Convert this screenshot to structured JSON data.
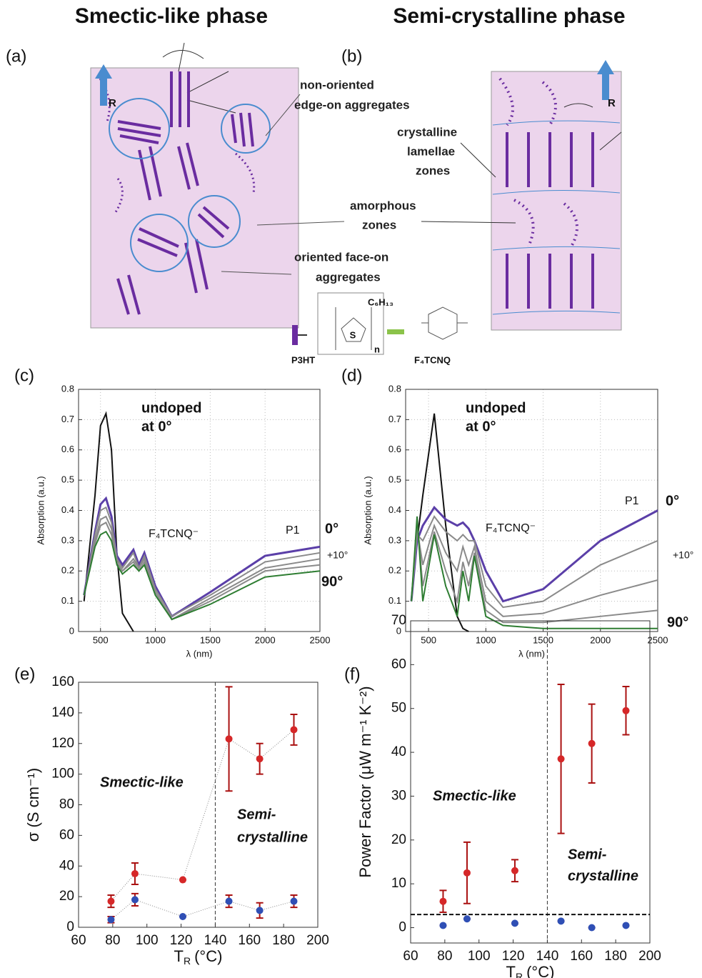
{
  "headings": [
    "Smectic-like phase",
    "Semi-crystalline phase"
  ],
  "diagrams": {
    "a": {
      "label": "(a)",
      "arrow": "R",
      "callouts": [
        [
          "non-oriented",
          "edge-on aggregates"
        ],
        [
          "amorphous",
          "zones"
        ],
        [
          "oriented face-on",
          "aggregates"
        ]
      ]
    },
    "b": {
      "label": "(b)",
      "arrow": "R",
      "callouts": [
        [
          "crystalline",
          "lamellae",
          "zones"
        ]
      ]
    },
    "legend": {
      "polymer": "P3HT",
      "dopant": "F₄TCNQ",
      "side_chain": "C₆H₁₃",
      "ring_atom": "S",
      "repeat": "n"
    }
  },
  "chart_data": [
    {
      "type": "line",
      "label": "(c)",
      "x_label": "λ (nm)",
      "y_label": "Absorption (a.u.)",
      "xlim": [
        300,
        2500
      ],
      "ylim": [
        0,
        0.8
      ],
      "xticks": [
        500,
        1000,
        1500,
        2000,
        2500
      ],
      "yticks": [
        0,
        0.1,
        0.2,
        0.3,
        0.4,
        0.5,
        0.6,
        0.7,
        0.8
      ],
      "grid": true,
      "x": [
        350,
        450,
        500,
        550,
        600,
        650,
        700,
        800,
        850,
        900,
        1000,
        1150,
        1500,
        2000,
        2500
      ],
      "series": [
        {
          "color": "#111111",
          "values": [
            0.1,
            0.45,
            0.68,
            0.72,
            0.6,
            0.25,
            0.06,
            0,
            null,
            null,
            null,
            null,
            null,
            null,
            null
          ]
        },
        {
          "color": "#5b3fa8",
          "values": [
            0.12,
            0.33,
            0.42,
            0.44,
            0.38,
            0.25,
            0.22,
            0.27,
            0.22,
            0.26,
            0.15,
            0.05,
            0.13,
            0.25,
            0.28
          ]
        },
        {
          "color": "#8a8a8a",
          "values": [
            0.12,
            0.32,
            0.4,
            0.41,
            0.36,
            0.24,
            0.21,
            0.26,
            0.21,
            0.25,
            0.14,
            0.05,
            0.12,
            0.23,
            0.26
          ]
        },
        {
          "color": "#8a8a8a",
          "values": [
            0.12,
            0.3,
            0.37,
            0.38,
            0.34,
            0.23,
            0.2,
            0.24,
            0.21,
            0.24,
            0.13,
            0.04,
            0.11,
            0.21,
            0.24
          ]
        },
        {
          "color": "#8a8a8a",
          "values": [
            0.12,
            0.29,
            0.35,
            0.36,
            0.32,
            0.23,
            0.2,
            0.23,
            0.2,
            0.23,
            0.13,
            0.04,
            0.1,
            0.2,
            0.22
          ]
        },
        {
          "color": "#2e7d32",
          "values": [
            0.12,
            0.28,
            0.32,
            0.33,
            0.3,
            0.22,
            0.19,
            0.22,
            0.2,
            0.22,
            0.12,
            0.04,
            0.09,
            0.18,
            0.2
          ]
        }
      ],
      "annotations": [
        "undoped",
        "at 0°",
        "F₄TCNQ⁻",
        "P1",
        "0°",
        "+10°",
        "90°"
      ]
    },
    {
      "type": "line",
      "label": "(d)",
      "x_label": "λ (nm)",
      "y_label": "Absorption (a.u.)",
      "xlim": [
        300,
        2500
      ],
      "ylim": [
        0,
        0.8
      ],
      "xticks": [
        500,
        1000,
        1500,
        2000,
        2500
      ],
      "yticks": [
        0,
        0.1,
        0.2,
        0.3,
        0.4,
        0.5,
        0.6,
        0.7,
        0.8
      ],
      "grid": true,
      "x": [
        350,
        400,
        450,
        550,
        650,
        750,
        800,
        850,
        900,
        1000,
        1150,
        1500,
        2000,
        2500
      ],
      "series": [
        {
          "color": "#111111",
          "values": [
            0.1,
            0.3,
            0.45,
            0.72,
            0.35,
            0.05,
            0.01,
            0,
            null,
            null,
            null,
            null,
            null,
            null
          ]
        },
        {
          "color": "#5b3fa8",
          "values": [
            0.1,
            0.3,
            0.35,
            0.41,
            0.37,
            0.35,
            0.36,
            0.34,
            0.3,
            0.2,
            0.1,
            0.14,
            0.3,
            0.4
          ]
        },
        {
          "color": "#8a8a8a",
          "values": [
            0.1,
            0.32,
            0.3,
            0.38,
            0.33,
            0.3,
            0.32,
            0.3,
            0.3,
            0.15,
            0.08,
            0.1,
            0.22,
            0.3
          ]
        },
        {
          "color": "#8a8a8a",
          "values": [
            0.1,
            0.34,
            0.22,
            0.35,
            0.26,
            0.2,
            0.28,
            0.22,
            0.28,
            0.1,
            0.05,
            0.06,
            0.12,
            0.17
          ]
        },
        {
          "color": "#8a8a8a",
          "values": [
            0.1,
            0.36,
            0.15,
            0.33,
            0.2,
            0.1,
            0.23,
            0.15,
            0.26,
            0.07,
            0.03,
            0.03,
            0.05,
            0.07
          ]
        },
        {
          "color": "#2e7d32",
          "values": [
            0.1,
            0.38,
            0.1,
            0.32,
            0.15,
            0.05,
            0.2,
            0.1,
            0.25,
            0.05,
            0.02,
            0.01,
            0.01,
            0.01
          ]
        }
      ],
      "annotations": [
        "undoped",
        "at 0°",
        "F₄TCNQ⁻",
        "P1",
        "0°",
        "+10°",
        "90°"
      ]
    },
    {
      "type": "scatter",
      "label": "(e)",
      "x_label": [
        "T",
        "R",
        "(°C)"
      ],
      "y_label": "σ (S cm⁻¹)",
      "xlim": [
        60,
        200
      ],
      "ylim": [
        0,
        160
      ],
      "xticks": [
        60,
        80,
        100,
        120,
        140,
        160,
        180,
        200
      ],
      "yticks": [
        0,
        20,
        40,
        60,
        80,
        100,
        120,
        140,
        160
      ],
      "grid": false,
      "vline": 140,
      "line_style": "dotted",
      "x": [
        79,
        93,
        121,
        148,
        166,
        186
      ],
      "series": [
        {
          "color": "#d62728",
          "values": [
            17,
            35,
            31,
            123,
            110,
            129
          ],
          "errors": [
            4,
            7,
            0,
            34,
            10,
            10
          ]
        },
        {
          "color": "#2f4fb5",
          "values": [
            5,
            18,
            7,
            17,
            11,
            17
          ],
          "errors": [
            2,
            4,
            0,
            4,
            5,
            4
          ]
        }
      ],
      "annotations": [
        "Smectic-like",
        "Semi-",
        "crystalline"
      ]
    },
    {
      "type": "scatter",
      "label": "(f)",
      "x_label": [
        "T",
        "R",
        "(°C)"
      ],
      "y_label": "Power Factor (μW m⁻¹ K⁻²)",
      "xlim": [
        60,
        200
      ],
      "ylim": [
        -3.5,
        70
      ],
      "xticks": [
        60,
        80,
        100,
        120,
        140,
        160,
        180,
        200
      ],
      "yticks": [
        0,
        10,
        20,
        30,
        40,
        50,
        60,
        70
      ],
      "grid": false,
      "vline": 140,
      "hline": 3,
      "x": [
        79,
        93,
        121,
        148,
        166,
        186
      ],
      "series": [
        {
          "color": "#d62728",
          "values": [
            6,
            12.5,
            13,
            38.5,
            42,
            49.5
          ],
          "errors": [
            2.5,
            7,
            2.5,
            17,
            9,
            5.5
          ]
        },
        {
          "color": "#2f4fb5",
          "values": [
            0.5,
            2,
            1,
            1.5,
            0,
            0.5
          ],
          "errors": [
            0,
            0,
            0,
            0,
            0,
            0
          ]
        }
      ],
      "annotations": [
        "Smectic-like",
        "Semi-",
        "crystalline"
      ]
    }
  ]
}
